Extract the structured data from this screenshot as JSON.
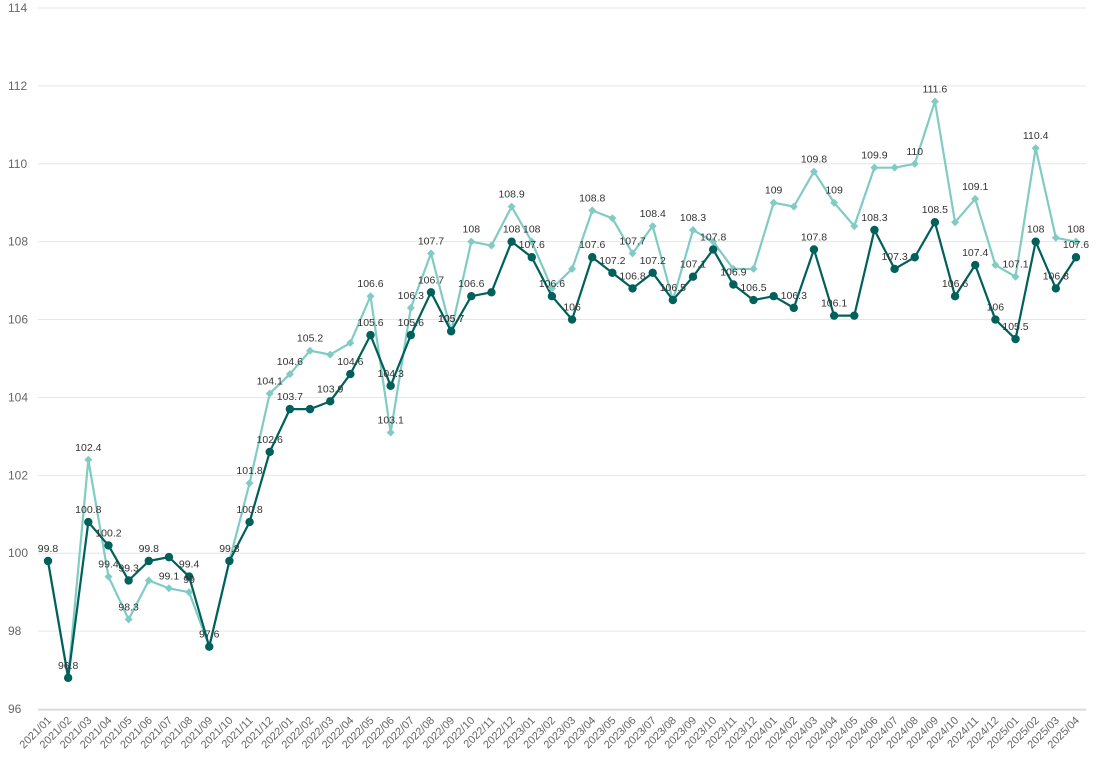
{
  "chart_data": {
    "type": "line",
    "title": "",
    "xlabel": "",
    "ylabel": "",
    "ylim": [
      96,
      114
    ],
    "yticks": [
      96,
      98,
      100,
      102,
      104,
      106,
      108,
      110,
      112,
      114
    ],
    "grid": true,
    "legend": "none",
    "categories": [
      "2021/01",
      "2021/02",
      "2021/03",
      "2021/04",
      "2021/05",
      "2021/06",
      "2021/07",
      "2021/08",
      "2021/09",
      "2021/10",
      "2021/11",
      "2021/12",
      "2022/01",
      "2022/02",
      "2022/03",
      "2022/04",
      "2022/05",
      "2022/06",
      "2022/07",
      "2022/08",
      "2022/09",
      "2022/10",
      "2022/11",
      "2022/12",
      "2023/01",
      "2023/02",
      "2023/03",
      "2023/04",
      "2023/05",
      "2023/06",
      "2023/07",
      "2023/08",
      "2023/09",
      "2023/10",
      "2023/11",
      "2023/12",
      "2024/01",
      "2024/02",
      "2024/03",
      "2024/04",
      "2024/05",
      "2024/06",
      "2024/07",
      "2024/08",
      "2024/09",
      "2024/10",
      "2024/11",
      "2024/12",
      "2025/01",
      "2025/02",
      "2025/03",
      "2025/04"
    ],
    "series": [
      {
        "color": "#80cbc4",
        "marker": "diamond",
        "values": [
          99.8,
          96.8,
          102.4,
          99.4,
          98.3,
          99.3,
          99.1,
          99,
          97.6,
          99.8,
          101.8,
          104.1,
          104.6,
          105.2,
          105.1,
          105.4,
          106.6,
          103.1,
          106.3,
          107.7,
          105.7,
          108,
          107.9,
          108.9,
          108,
          106.8,
          107.3,
          108.8,
          108.6,
          107.7,
          108.4,
          106.5,
          108.3,
          108.0,
          107.3,
          107.3,
          109,
          108.9,
          109.8,
          109,
          108.4,
          109.9,
          109.9,
          110,
          111.6,
          108.5,
          109.1,
          107.4,
          107.1,
          110.4,
          108.1,
          108
        ],
        "labels": [
          "99.8",
          "96.8",
          "102.4",
          "99.4",
          "98.3",
          "",
          "99.1",
          "99",
          "97.6",
          "99.8",
          "101.8",
          "104.1",
          "104.6",
          "105.2",
          "",
          "",
          "106.6",
          "103.1",
          "106.3",
          "107.7",
          "105.7",
          "108",
          "",
          "108.9",
          "108",
          "",
          "",
          "108.8",
          "",
          "107.7",
          "108.4",
          "",
          "108.3",
          "",
          "",
          "",
          "109",
          "",
          "109.8",
          "109",
          "",
          "109.9",
          "",
          "110",
          "111.6",
          "",
          "109.1",
          "",
          "107.1",
          "110.4",
          "",
          "108"
        ]
      },
      {
        "color": "#00605b",
        "marker": "circle",
        "values": [
          99.8,
          96.8,
          100.8,
          100.2,
          99.3,
          99.8,
          99.9,
          99.4,
          97.6,
          99.8,
          100.8,
          102.6,
          103.7,
          103.7,
          103.9,
          104.6,
          105.6,
          104.3,
          105.6,
          106.7,
          105.7,
          106.6,
          106.7,
          108,
          107.6,
          106.6,
          106,
          107.6,
          107.2,
          106.8,
          107.2,
          106.5,
          107.1,
          107.8,
          106.9,
          106.5,
          106.6,
          106.3,
          107.8,
          106.1,
          106.1,
          108.3,
          107.3,
          107.6,
          108.5,
          106.6,
          107.4,
          106,
          105.5,
          108,
          106.8,
          107.6
        ],
        "labels": [
          "",
          "",
          "100.8",
          "100.2",
          "99.3",
          "99.8",
          "",
          "99.4",
          "",
          "",
          "100.8",
          "102.6",
          "103.7",
          "",
          "103.9",
          "104.6",
          "105.6",
          "104.3",
          "105.6",
          "106.7",
          "105.7",
          "106.6",
          "",
          "108",
          "107.6",
          "106.6",
          "106",
          "107.6",
          "107.2",
          "106.8",
          "107.2",
          "106.5",
          "107.1",
          "107.8",
          "106.9",
          "106.5",
          "",
          "106.3",
          "107.8",
          "106.1",
          "",
          "108.3",
          "107.3",
          "",
          "108.5",
          "106.6",
          "107.4",
          "106",
          "105.5",
          "108",
          "106.8",
          "107.6"
        ]
      }
    ]
  }
}
